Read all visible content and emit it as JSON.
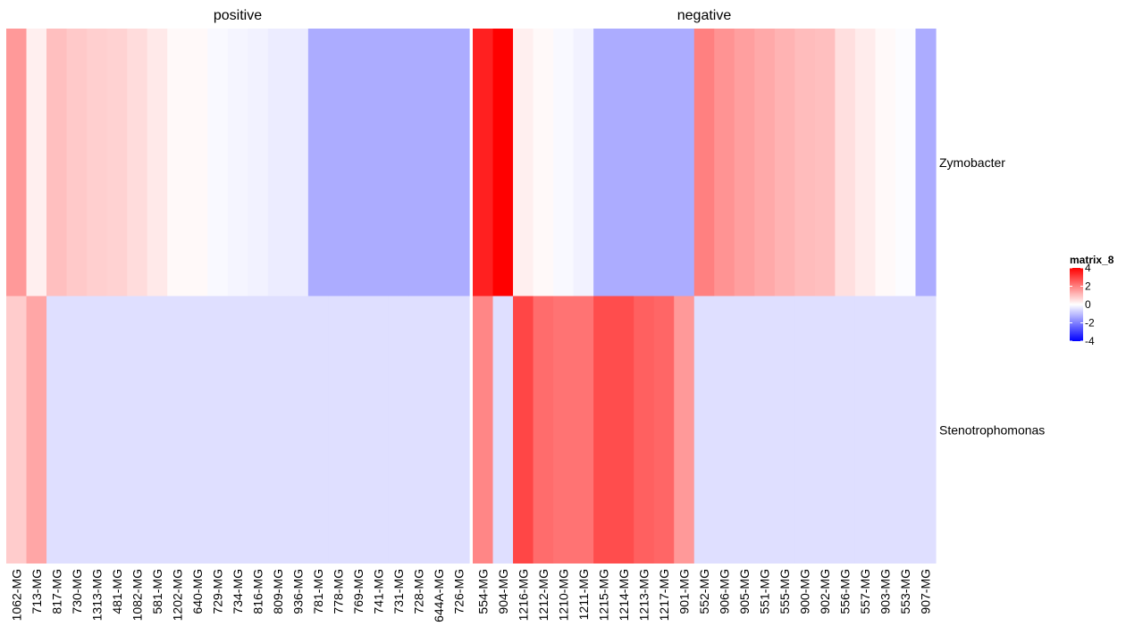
{
  "chart_data": {
    "type": "heatmap",
    "legend": {
      "title": "matrix_8",
      "ticks": [
        4,
        2,
        0,
        -2,
        -4
      ],
      "range": [
        -4,
        4
      ],
      "placement": "right"
    },
    "colors": {
      "low": "#0000ff",
      "mid": "#ffffff",
      "high": "#ff0000"
    },
    "rows": [
      "Zymobacter",
      "Stenotrophomonas"
    ],
    "panels": [
      {
        "title": "positive",
        "columns": [
          "1062-MG",
          "713-MG",
          "817-MG",
          "730-MG",
          "1313-MG",
          "481-MG",
          "1082-MG",
          "581-MG",
          "1202-MG",
          "640-MG",
          "729-MG",
          "734-MG",
          "816-MG",
          "809-MG",
          "936-MG",
          "781-MG",
          "778-MG",
          "769-MG",
          "741-MG",
          "731-MG",
          "728-MG",
          "644A-MG",
          "726-MG"
        ],
        "values": [
          [
            1.6,
            0.25,
            1.0,
            0.85,
            0.75,
            0.7,
            0.55,
            0.35,
            0.1,
            0.1,
            -0.1,
            -0.15,
            -0.2,
            -0.3,
            -0.3,
            -1.3,
            -1.3,
            -1.3,
            -1.3,
            -1.3,
            -1.3,
            -1.3,
            -1.3
          ],
          [
            0.8,
            1.4,
            -0.5,
            -0.5,
            -0.5,
            -0.5,
            -0.5,
            -0.5,
            -0.5,
            -0.5,
            -0.5,
            -0.5,
            -0.5,
            -0.5,
            -0.5,
            -0.5,
            -0.5,
            -0.5,
            -0.5,
            -0.5,
            -0.5,
            -0.5,
            -0.5
          ]
        ]
      },
      {
        "title": "negative",
        "columns": [
          "554-MG",
          "904-MG",
          "1216-MG",
          "1212-MG",
          "1210-MG",
          "1211-MG",
          "1215-MG",
          "1214-MG",
          "1213-MG",
          "1217-MG",
          "901-MG",
          "552-MG",
          "906-MG",
          "905-MG",
          "551-MG",
          "555-MG",
          "900-MG",
          "902-MG",
          "556-MG",
          "557-MG",
          "903-MG",
          "553-MG",
          "907-MG"
        ],
        "values": [
          [
            3.5,
            4.0,
            0.25,
            0.1,
            -0.1,
            -0.2,
            -1.3,
            -1.3,
            -1.3,
            -1.3,
            -1.3,
            2.0,
            1.7,
            1.5,
            1.35,
            1.2,
            1.05,
            1.0,
            0.5,
            0.3,
            0.1,
            -0.05,
            -1.3
          ],
          [
            1.9,
            -0.5,
            2.9,
            2.3,
            2.2,
            2.2,
            2.8,
            2.8,
            2.5,
            2.4,
            1.6,
            -0.5,
            -0.5,
            -0.5,
            -0.5,
            -0.5,
            -0.5,
            -0.5,
            -0.5,
            -0.5,
            -0.5,
            -0.5,
            -0.5
          ]
        ]
      }
    ]
  }
}
